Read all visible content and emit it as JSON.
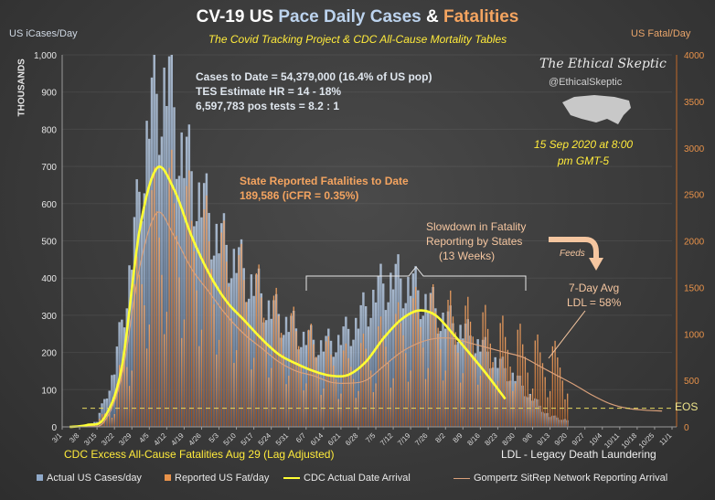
{
  "header": {
    "title_a": "CV-19 US ",
    "title_b": "Pace Daily Cases ",
    "title_c": "& ",
    "title_d": "Fatalities",
    "subtitle": "The Covid Tracking Project & CDC All-Cause  Mortality Tables"
  },
  "colors": {
    "cases": "#8fa9c9",
    "fatalities": "#e8924a",
    "cdc_line": "#ffff33",
    "gompertz": "#d9a07a",
    "background": "#3b3b3b"
  },
  "annotations": {
    "cases_line1": "Cases to Date = 54,379,000  (16.4% of US pop)",
    "cases_line2": "TES Estimate HR = 14 - 18%",
    "cases_line3": "6,597,783 pos tests = 8.2 : 1",
    "fatal_line1": "State Reported Fatalities to Date",
    "fatal_line2": "189,586  (iCFR = 0.35%)",
    "slowdown_line1": "Slowdown  in Fatality",
    "slowdown_line2": "Reporting by States",
    "slowdown_line3": "(13 Weeks)",
    "feeds": "Feeds",
    "avg_line1": "7-Day Avg",
    "avg_line2": "LDL = 58%",
    "eos": "EOS",
    "brand_name": "The Ethical Skeptic",
    "brand_handle": "@EthicalSkeptic",
    "date_line1": "15 Sep 2020 at 8:00",
    "date_line2": "pm GMT-5",
    "cdc_excess": "CDC Excess All-Cause Fatalities Aug 29 (Lag Adjusted)",
    "ldl": "LDL - Legacy Death Laundering"
  },
  "chart_data": {
    "type": "bar",
    "ylabel_left": "US iCases/Day",
    "ylabel_right": "US Fatal/Day",
    "yunit_left": "THOUSANDS",
    "ylim_left": [
      0,
      1000
    ],
    "ylim_right": [
      0,
      4000
    ],
    "yticks_left": [
      "0",
      "100",
      "200",
      "300",
      "400",
      "500",
      "600",
      "700",
      "800",
      "900",
      "1,000"
    ],
    "yticks_right": [
      "0",
      "500",
      "1000",
      "1500",
      "2000",
      "2500",
      "3000",
      "3500",
      "4000"
    ],
    "x_start": "2020-03-01",
    "x_ticks": [
      "3/1",
      "3/8",
      "3/15",
      "3/22",
      "3/29",
      "4/5",
      "4/12",
      "4/19",
      "4/26",
      "5/3",
      "5/10",
      "5/17",
      "5/24",
      "5/31",
      "6/7",
      "6/14",
      "6/21",
      "6/28",
      "7/5",
      "7/12",
      "7/19",
      "7/26",
      "8/2",
      "8/9",
      "8/16",
      "8/23",
      "8/30",
      "9/6",
      "9/13",
      "9/20",
      "9/27",
      "10/4",
      "10/11",
      "10/18",
      "10/25",
      "11/1"
    ],
    "eos_level_right": 200,
    "series": [
      {
        "name": "Actual US Cases/day",
        "axis": "left",
        "kind": "bar",
        "weekly_values": [
          0,
          2,
          15,
          160,
          480,
          880,
          980,
          760,
          640,
          530,
          470,
          400,
          330,
          290,
          250,
          230,
          250,
          300,
          380,
          420,
          400,
          350,
          300,
          270,
          230,
          180,
          140,
          80,
          30,
          20
        ]
      },
      {
        "name": "Reported US Fat/day",
        "axis": "right",
        "kind": "bar",
        "weekly_values": [
          0,
          5,
          40,
          250,
          1100,
          2000,
          2250,
          2100,
          1900,
          1700,
          1500,
          1350,
          1150,
          1000,
          850,
          750,
          650,
          700,
          850,
          950,
          1100,
          1150,
          1100,
          1050,
          1000,
          900,
          850,
          750,
          700,
          650
        ]
      },
      {
        "name": "CDC Actual Date Arrival",
        "axis": "right",
        "kind": "line",
        "weekly_values": [
          0,
          20,
          100,
          650,
          2100,
          2780,
          2550,
          2050,
          1650,
          1350,
          1150,
          950,
          780,
          680,
          600,
          550,
          560,
          700,
          950,
          1150,
          1250,
          1200,
          1000,
          780,
          550,
          300
        ]
      },
      {
        "name": "Gompertz SitRep Network Reporting Arrival",
        "axis": "right",
        "kind": "line",
        "weekly_values": [
          0,
          10,
          60,
          550,
          1700,
          2300,
          2050,
          1700,
          1450,
          1200,
          1000,
          850,
          700,
          600,
          550,
          480,
          470,
          500,
          650,
          800,
          900,
          950,
          950,
          900,
          850,
          800,
          750,
          650,
          550,
          450,
          340,
          250,
          200,
          180,
          170
        ]
      }
    ]
  },
  "legend": {
    "cases": "Actual US Cases/day",
    "fatalities": "Reported US Fat/day",
    "cdc": "CDC Actual Date Arrival",
    "gompertz": "Gompertz SitRep Network Reporting Arrival"
  }
}
